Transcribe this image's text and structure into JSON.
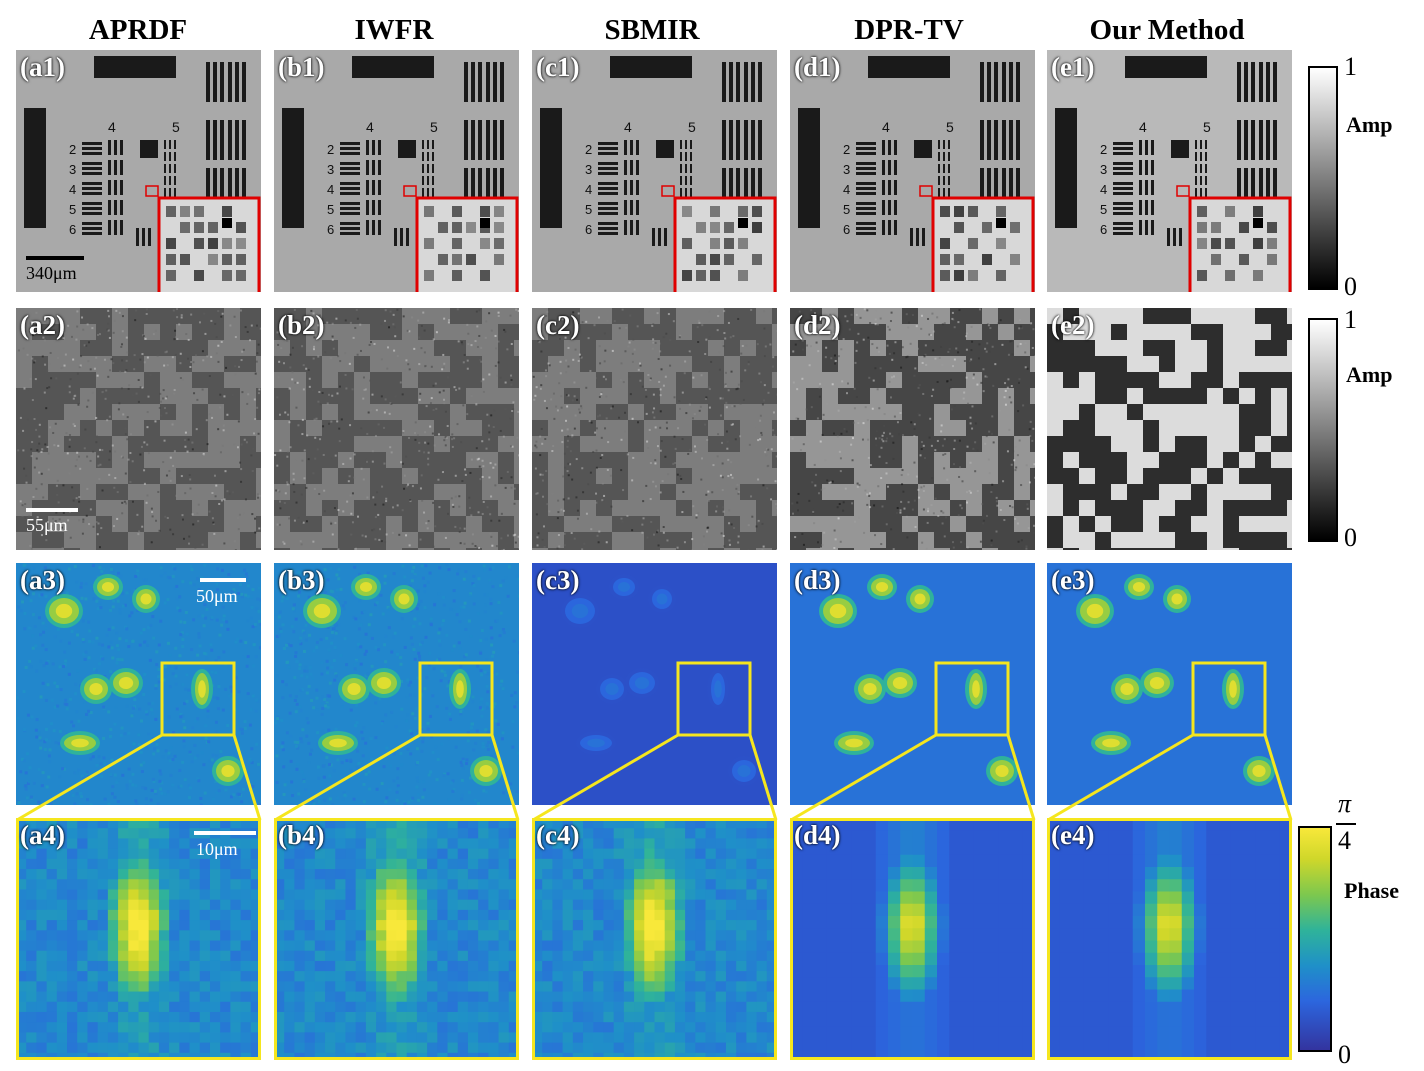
{
  "columns": [
    {
      "title": "APRDF"
    },
    {
      "title": "IWFR"
    },
    {
      "title": "SBMIR"
    },
    {
      "title": "DPR-TV"
    },
    {
      "title": "Our Method"
    }
  ],
  "rows": [
    {
      "labels": [
        "(a1)",
        "(b1)",
        "(c1)",
        "(d1)",
        "(e1)"
      ],
      "kind": "amplitude-target"
    },
    {
      "labels": [
        "(a2)",
        "(b2)",
        "(c2)",
        "(d2)",
        "(e2)"
      ],
      "kind": "amplitude-pattern"
    },
    {
      "labels": [
        "(a3)",
        "(b3)",
        "(c3)",
        "(d3)",
        "(e3)"
      ],
      "kind": "phase-cells"
    },
    {
      "labels": [
        "(a4)",
        "(b4)",
        "(c4)",
        "(d4)",
        "(e4)"
      ],
      "kind": "phase-zoom"
    }
  ],
  "scalebars": {
    "row1": "340μm",
    "row2": "55μm",
    "row3": "50μm",
    "row4": "10μm"
  },
  "target_group_numbers": [
    "4",
    "5"
  ],
  "target_element_numbers": [
    "2",
    "3",
    "4",
    "5",
    "6"
  ],
  "colorbars": {
    "amp1": {
      "max": "1",
      "min": "0",
      "name": "Amp"
    },
    "amp2": {
      "max": "1",
      "min": "0",
      "name": "Amp"
    },
    "phase": {
      "max_top": "π",
      "max_bottom": "4",
      "min": "0",
      "name": "Phase"
    }
  },
  "colors": {
    "zoom_box_red": "#e00000",
    "zoom_box_yellow": "#f5e61e",
    "phase_low": "#2d1e8c",
    "phase_high": "#f7e53a"
  }
}
